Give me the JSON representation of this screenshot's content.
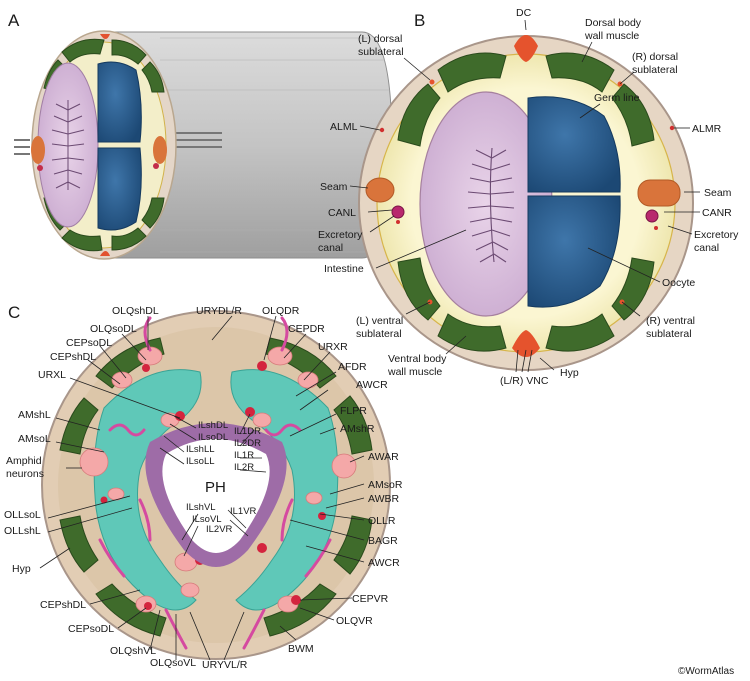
{
  "panels": {
    "a": "A",
    "b": "B",
    "c": "C"
  },
  "panel_b": {
    "labels": {
      "dc": "DC",
      "dorsal_muscle_1": "Dorsal body",
      "dorsal_muscle_2": "wall muscle",
      "l_dorsal_sub_1": "(L) dorsal",
      "l_dorsal_sub_2": "sublateral",
      "r_dorsal_sub_1": "(R) dorsal",
      "r_dorsal_sub_2": "sublateral",
      "alml": "ALML",
      "almr": "ALMR",
      "germ_line": "Germ line",
      "seam_l": "Seam",
      "seam_r": "Seam",
      "canl": "CANL",
      "canr": "CANR",
      "excretory_l_1": "Excretory",
      "excretory_l_2": "canal",
      "excretory_r_1": "Excretory",
      "excretory_r_2": "canal",
      "intestine": "Intestine",
      "oocyte": "Oocyte",
      "l_ventral_sub_1": "(L) ventral",
      "l_ventral_sub_2": "sublateral",
      "r_ventral_sub_1": "(R) ventral",
      "r_ventral_sub_2": "sublateral",
      "ventral_muscle_1": "Ventral body",
      "ventral_muscle_2": "wall muscle",
      "vnc": "(L/R) VNC",
      "hyp": "Hyp"
    }
  },
  "panel_c": {
    "ph": "PH",
    "labels": {
      "olqshdl": "OLQshDL",
      "urydl_r": "URYDL/R",
      "olqdr": "OLQDR",
      "olqsodl": "OLQsoDL",
      "cepsodl_top": "CEPsoDL",
      "cepdr": "CEPDR",
      "cepshdl_top": "CEPshDL",
      "urxr": "URXR",
      "urxl": "URXL",
      "afdr": "AFDR",
      "awcr_top": "AWCR",
      "amshl": "AMshL",
      "flpr": "FLPR",
      "amsol": "AMsoL",
      "amshr": "AMshR",
      "ilshdl": "ILshDL",
      "ilsodl": "ILsoDL",
      "ilshll": "ILshLL",
      "ilsoll": "ILsoLL",
      "il1dr": "IL1DR",
      "il2dr": "IL2DR",
      "il1r": "IL1R",
      "il2r": "IL2R",
      "amphid_1": "Amphid",
      "amphid_2": "neurons",
      "awar": "AWAR",
      "amsor": "AMsoR",
      "awbr": "AWBR",
      "ollsol": "OLLsoL",
      "ollshl": "OLLshL",
      "ollr": "OLLR",
      "ilshvl": "ILshVL",
      "il1vr": "IL1VR",
      "ilsovl": "ILsoVL",
      "il2vr": "IL2VR",
      "bagr": "BAGR",
      "hyp": "Hyp",
      "awcr_bottom": "AWCR",
      "cepshdl_bottom": "CEPshDL",
      "cepvr": "CEPVR",
      "cepsodl_bottom": "CEPsoDL",
      "olqvr": "OLQVR",
      "olqshvl": "OLQshVL",
      "olqsovl": "OLQsoVL",
      "uryvl_r": "URYVL/R",
      "bwm": "BWM"
    }
  },
  "copyright": "©WormAtlas"
}
